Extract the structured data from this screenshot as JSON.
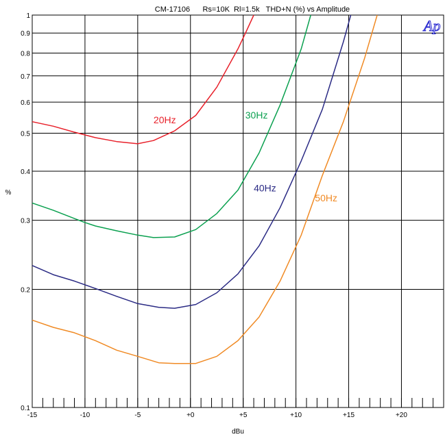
{
  "chart_data": {
    "type": "line",
    "title": "CM-17106      Rs=10K  Rl=1.5k   THD+N (%) vs Amplitude",
    "xlabel": "dBu",
    "ylabel": "%",
    "logo_text": "Ap",
    "xlim": [
      -15,
      24
    ],
    "ylim": [
      0.1,
      1.0
    ],
    "yscale": "log",
    "grid": true,
    "x_ticks": [
      {
        "value": -15,
        "label": "-15"
      },
      {
        "value": -10,
        "label": "-10"
      },
      {
        "value": -5,
        "label": "-5"
      },
      {
        "value": 0,
        "label": "+0"
      },
      {
        "value": 5,
        "label": "+5"
      },
      {
        "value": 10,
        "label": "+10"
      },
      {
        "value": 15,
        "label": "+15"
      },
      {
        "value": 20,
        "label": "+20"
      }
    ],
    "y_ticks": [
      {
        "value": 1.0,
        "label": "1"
      },
      {
        "value": 0.9,
        "label": "0.9"
      },
      {
        "value": 0.8,
        "label": "0.8"
      },
      {
        "value": 0.7,
        "label": "0.7"
      },
      {
        "value": 0.6,
        "label": "0.6"
      },
      {
        "value": 0.5,
        "label": "0.5"
      },
      {
        "value": 0.4,
        "label": "0.4"
      },
      {
        "value": 0.3,
        "label": "0.3"
      },
      {
        "value": 0.2,
        "label": "0.2"
      },
      {
        "value": 0.1,
        "label": "0.1"
      }
    ],
    "series": [
      {
        "name": "20Hz",
        "color": "#e8202a",
        "label_pos": [
          -3.5,
          0.53
        ],
        "x": [
          -15,
          -13,
          -11,
          -9,
          -7,
          -5,
          -3.5,
          -1.5,
          0.5,
          2.5,
          4.5,
          5.3,
          6.0
        ],
        "y": [
          0.535,
          0.521,
          0.503,
          0.487,
          0.476,
          0.47,
          0.479,
          0.507,
          0.555,
          0.655,
          0.82,
          0.91,
          1.0
        ]
      },
      {
        "name": "30Hz",
        "color": "#0aa04f",
        "label_pos": [
          5.2,
          0.545
        ],
        "x": [
          -15,
          -13,
          -11,
          -10,
          -9,
          -7,
          -5,
          -3.5,
          -1.5,
          0.5,
          2.5,
          4.5,
          6.5,
          8.5,
          10.5,
          11.4
        ],
        "y": [
          0.332,
          0.318,
          0.303,
          0.296,
          0.29,
          0.282,
          0.275,
          0.271,
          0.272,
          0.284,
          0.312,
          0.358,
          0.445,
          0.59,
          0.82,
          1.0
        ]
      },
      {
        "name": "40Hz",
        "color": "#2a2a84",
        "label_pos": [
          6.0,
          0.355
        ],
        "x": [
          -15,
          -13,
          -11,
          -9,
          -7,
          -5,
          -3,
          -1.5,
          0.5,
          2.5,
          4.5,
          6.5,
          8.5,
          10.5,
          12.5,
          14.5,
          15.2
        ],
        "y": [
          0.23,
          0.218,
          0.21,
          0.201,
          0.192,
          0.184,
          0.18,
          0.179,
          0.183,
          0.196,
          0.219,
          0.258,
          0.323,
          0.425,
          0.575,
          0.855,
          1.0
        ]
      },
      {
        "name": "50Hz",
        "color": "#f08a24",
        "label_pos": [
          11.8,
          0.335
        ],
        "x": [
          -15,
          -13,
          -11,
          -9,
          -7,
          -5,
          -3,
          -1.5,
          0.5,
          2.5,
          4.5,
          6.5,
          8.5,
          10.5,
          12.5,
          14.5,
          16.5,
          17.7
        ],
        "y": [
          0.167,
          0.16,
          0.155,
          0.148,
          0.14,
          0.135,
          0.13,
          0.1295,
          0.1295,
          0.135,
          0.148,
          0.17,
          0.21,
          0.275,
          0.39,
          0.535,
          0.775,
          1.0
        ]
      }
    ]
  }
}
